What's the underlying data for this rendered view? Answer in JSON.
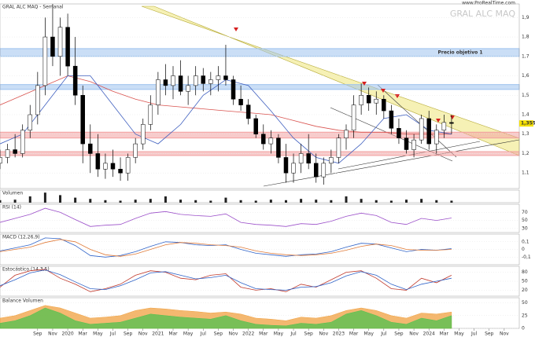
{
  "chart_data": [
    {
      "type": "candlestick",
      "title": "GRAL ALC MAQ - Semanal",
      "watermark": "GRAL ALC MAQ",
      "source": "www.ProRealTime.com",
      "x": [
        -9,
        -8,
        -7,
        -6,
        -5,
        -4,
        -3,
        -2,
        -1,
        0,
        1,
        2,
        3,
        4,
        5,
        6,
        7,
        8,
        9,
        10,
        11,
        12,
        13,
        14,
        15,
        16,
        17,
        18,
        19,
        20,
        21,
        22,
        23,
        24,
        25,
        26,
        27,
        28,
        29,
        30,
        31,
        32,
        33,
        34,
        35,
        36,
        37,
        38,
        39,
        40,
        41,
        42,
        43,
        44,
        45,
        46,
        47,
        48,
        49,
        50,
        51
      ],
      "open": [
        1.15,
        1.18,
        1.22,
        1.2,
        1.32,
        1.4,
        1.55,
        1.8,
        1.7,
        1.85,
        1.65,
        1.5,
        1.25,
        1.2,
        1.12,
        1.15,
        1.12,
        1.1,
        1.18,
        1.25,
        1.35,
        1.45,
        1.58,
        1.55,
        1.6,
        1.52,
        1.55,
        1.6,
        1.56,
        1.58,
        1.6,
        1.58,
        1.48,
        1.45,
        1.38,
        1.3,
        1.25,
        1.28,
        1.18,
        1.1,
        1.15,
        1.2,
        1.15,
        1.08,
        1.15,
        1.18,
        1.28,
        1.32,
        1.45,
        1.5,
        1.46,
        1.48,
        1.42,
        1.33,
        1.28,
        1.22,
        1.27,
        1.38,
        1.25,
        1.32,
        1.36
      ],
      "high": [
        1.22,
        1.25,
        1.3,
        1.35,
        1.45,
        1.62,
        1.9,
        1.97,
        1.9,
        1.92,
        1.8,
        1.55,
        1.35,
        1.3,
        1.2,
        1.22,
        1.18,
        1.2,
        1.28,
        1.38,
        1.5,
        1.62,
        1.66,
        1.65,
        1.68,
        1.6,
        1.65,
        1.64,
        1.62,
        1.65,
        1.76,
        1.6,
        1.55,
        1.48,
        1.4,
        1.35,
        1.32,
        1.3,
        1.25,
        1.2,
        1.25,
        1.3,
        1.2,
        1.18,
        1.22,
        1.3,
        1.35,
        1.5,
        1.56,
        1.54,
        1.52,
        1.5,
        1.45,
        1.38,
        1.32,
        1.3,
        1.4,
        1.42,
        1.35,
        1.4,
        1.4
      ],
      "low": [
        1.12,
        1.15,
        1.18,
        1.18,
        1.28,
        1.35,
        1.5,
        1.65,
        1.6,
        1.6,
        1.45,
        1.15,
        1.1,
        1.08,
        1.07,
        1.08,
        1.06,
        1.06,
        1.15,
        1.22,
        1.32,
        1.4,
        1.5,
        1.48,
        1.5,
        1.45,
        1.5,
        1.52,
        1.5,
        1.52,
        1.55,
        1.45,
        1.42,
        1.35,
        1.28,
        1.22,
        1.2,
        1.15,
        1.05,
        1.05,
        1.1,
        1.12,
        1.05,
        1.04,
        1.1,
        1.15,
        1.22,
        1.28,
        1.4,
        1.42,
        1.4,
        1.38,
        1.3,
        1.25,
        1.2,
        1.18,
        1.25,
        1.22,
        1.2,
        1.28,
        1.3
      ],
      "close": [
        1.18,
        1.22,
        1.2,
        1.32,
        1.4,
        1.55,
        1.8,
        1.7,
        1.85,
        1.65,
        1.5,
        1.25,
        1.2,
        1.12,
        1.15,
        1.12,
        1.1,
        1.18,
        1.25,
        1.35,
        1.45,
        1.58,
        1.55,
        1.6,
        1.52,
        1.55,
        1.6,
        1.56,
        1.58,
        1.6,
        1.58,
        1.48,
        1.45,
        1.38,
        1.3,
        1.25,
        1.28,
        1.18,
        1.1,
        1.15,
        1.2,
        1.15,
        1.08,
        1.15,
        1.18,
        1.28,
        1.32,
        1.45,
        1.5,
        1.46,
        1.48,
        1.42,
        1.33,
        1.28,
        1.22,
        1.27,
        1.38,
        1.25,
        1.32,
        1.36,
        1.355
      ],
      "overlays": [
        {
          "color": "#d9534f",
          "x": [
            -9,
            -6,
            -3,
            0,
            3,
            6,
            9,
            12,
            15,
            18,
            21,
            24,
            27,
            30,
            33,
            36,
            39,
            42,
            45,
            48,
            51
          ],
          "values": [
            1.45,
            1.5,
            1.55,
            1.6,
            1.57,
            1.52,
            1.48,
            1.45,
            1.44,
            1.43,
            1.42,
            1.41,
            1.4,
            1.37,
            1.34,
            1.32,
            1.31,
            1.31,
            1.3,
            1.3,
            1.3
          ]
        },
        {
          "color": "#3f5fbf",
          "x": [
            -9,
            -6,
            -3,
            0,
            3,
            6,
            9,
            12,
            15,
            18,
            21,
            24,
            27,
            30,
            33,
            36,
            39,
            42,
            45,
            48,
            51
          ],
          "values": [
            1.25,
            1.3,
            1.45,
            1.6,
            1.6,
            1.45,
            1.3,
            1.25,
            1.35,
            1.5,
            1.58,
            1.55,
            1.42,
            1.28,
            1.18,
            1.15,
            1.25,
            1.38,
            1.4,
            1.32,
            1.3
          ]
        }
      ],
      "zones": [
        {
          "label": "Precio objetivo 1",
          "low": 1.7,
          "high": 1.74,
          "color": "#9ec3ee"
        },
        {
          "low": 1.53,
          "high": 1.555,
          "color": "#9ec3ee"
        },
        {
          "low": 1.28,
          "high": 1.31,
          "color": "#f2a0a0"
        },
        {
          "low": 1.19,
          "high": 1.21,
          "color": "#f2a0a0"
        }
      ],
      "last_price": {
        "value": 1.355,
        "label": "1,355"
      },
      "ylim": [
        1.02,
        1.97
      ],
      "yticks": [
        {
          "value": 1.1,
          "label": "1,1"
        },
        {
          "value": 1.2,
          "label": "1,2"
        },
        {
          "value": 1.3,
          "label": "1,3"
        },
        {
          "value": 1.4,
          "label": "1,4"
        },
        {
          "value": 1.5,
          "label": "1,5"
        },
        {
          "value": 1.6,
          "label": "1,6"
        },
        {
          "value": 1.7,
          "label": "1,7"
        },
        {
          "value": 1.8,
          "label": "1,8"
        },
        {
          "value": 1.9,
          "label": "1,9"
        }
      ],
      "xlim": [
        -9,
        60
      ],
      "xticks": [
        {
          "value": -4,
          "label": "Sep"
        },
        {
          "value": -2,
          "label": "Nov"
        },
        {
          "value": 0,
          "label": "2020"
        },
        {
          "value": 2,
          "label": "Mar"
        },
        {
          "value": 4,
          "label": "May"
        },
        {
          "value": 6,
          "label": "Jul"
        },
        {
          "value": 8,
          "label": "Sep"
        },
        {
          "value": 10,
          "label": "Nov"
        },
        {
          "value": 12,
          "label": "2021"
        },
        {
          "value": 14,
          "label": "Mar"
        },
        {
          "value": 16,
          "label": "May"
        },
        {
          "value": 18,
          "label": "Jul"
        },
        {
          "value": 20,
          "label": "Sep"
        },
        {
          "value": 22,
          "label": "Nov"
        },
        {
          "value": 24,
          "label": "2022"
        },
        {
          "value": 26,
          "label": "Mar"
        },
        {
          "value": 28,
          "label": "May"
        },
        {
          "value": 30,
          "label": "Jul"
        },
        {
          "value": 32,
          "label": "Sep"
        },
        {
          "value": 34,
          "label": "Nov"
        },
        {
          "value": 36,
          "label": "2023"
        },
        {
          "value": 38,
          "label": "Mar"
        },
        {
          "value": 40,
          "label": "May"
        },
        {
          "value": 42,
          "label": "Jul"
        },
        {
          "value": 44,
          "label": "Sep"
        },
        {
          "value": 46,
          "label": "Nov"
        },
        {
          "value": 48,
          "label": "2024"
        },
        {
          "value": 50,
          "label": "Mar"
        },
        {
          "value": 52,
          "label": "May"
        },
        {
          "value": 54,
          "label": "Jul"
        },
        {
          "value": 56,
          "label": "Sep"
        },
        {
          "value": 58,
          "label": "Nov"
        }
      ]
    },
    {
      "type": "bar",
      "title": "Volumen",
      "color": "#222222",
      "x": [
        -9,
        -7,
        -5,
        -3,
        -1,
        1,
        3,
        5,
        7,
        9,
        11,
        13,
        15,
        17,
        19,
        21,
        23,
        25,
        27,
        29,
        31,
        33,
        35,
        37,
        39,
        41,
        43,
        45,
        47,
        49,
        51
      ],
      "values": [
        10,
        12,
        25,
        40,
        30,
        20,
        15,
        10,
        8,
        12,
        15,
        25,
        12,
        10,
        8,
        20,
        10,
        8,
        12,
        10,
        15,
        12,
        10,
        25,
        15,
        10,
        8,
        12,
        15,
        10,
        8
      ],
      "ylim": [
        0,
        50
      ]
    },
    {
      "type": "line",
      "title": "RSI (14)",
      "x": [
        -9,
        -7,
        -5,
        -3,
        -1,
        1,
        3,
        5,
        7,
        9,
        11,
        13,
        15,
        17,
        19,
        21,
        23,
        25,
        27,
        29,
        31,
        33,
        35,
        37,
        39,
        41,
        43,
        45,
        47,
        49,
        51
      ],
      "series": [
        {
          "color": "#9b4fc9",
          "values": [
            45,
            55,
            65,
            80,
            70,
            52,
            35,
            38,
            40,
            55,
            68,
            72,
            65,
            62,
            60,
            66,
            45,
            40,
            38,
            35,
            42,
            40,
            48,
            60,
            68,
            62,
            45,
            40,
            55,
            50,
            56
          ]
        }
      ],
      "ylim": [
        20,
        90
      ],
      "yticks": [
        30,
        50,
        70
      ]
    },
    {
      "type": "line",
      "title": "MACD (12,26,9)",
      "x": [
        -9,
        -7,
        -5,
        -3,
        -1,
        1,
        3,
        5,
        7,
        9,
        11,
        13,
        15,
        17,
        19,
        21,
        23,
        25,
        27,
        29,
        31,
        33,
        35,
        37,
        39,
        41,
        43,
        45,
        47,
        49,
        51
      ],
      "series": [
        {
          "color": "#2f63c8",
          "values": [
            -0.02,
            0.02,
            0.06,
            0.15,
            0.14,
            0.05,
            -0.08,
            -0.1,
            -0.08,
            -0.03,
            0.04,
            0.1,
            0.09,
            0.06,
            0.05,
            0.06,
            0.0,
            -0.05,
            -0.07,
            -0.09,
            -0.07,
            -0.06,
            -0.03,
            0.03,
            0.08,
            0.07,
            0.02,
            -0.03,
            0.0,
            -0.01,
            0.01
          ]
        },
        {
          "color": "#e07b39",
          "values": [
            -0.03,
            0.0,
            0.03,
            0.09,
            0.13,
            0.1,
            0.0,
            -0.07,
            -0.09,
            -0.06,
            0.0,
            0.06,
            0.09,
            0.08,
            0.06,
            0.05,
            0.03,
            -0.02,
            -0.05,
            -0.07,
            -0.08,
            -0.07,
            -0.05,
            -0.01,
            0.04,
            0.07,
            0.05,
            0.0,
            -0.01,
            -0.01,
            0.0
          ]
        }
      ],
      "ylim": [
        -0.2,
        0.2
      ],
      "yticks": [
        {
          "value": -0.1,
          "label": "-0,1"
        },
        0,
        {
          "value": 0.1,
          "label": "0,1"
        }
      ]
    },
    {
      "type": "line",
      "title": "Estocástico (14,3,5)",
      "x": [
        -9,
        -7,
        -5,
        -3,
        -1,
        1,
        3,
        5,
        7,
        9,
        11,
        13,
        15,
        17,
        19,
        21,
        23,
        25,
        27,
        29,
        31,
        33,
        35,
        37,
        39,
        41,
        43,
        45,
        47,
        49,
        51
      ],
      "series": [
        {
          "color": "#c0392b",
          "values": [
            30,
            70,
            85,
            90,
            60,
            40,
            15,
            25,
            40,
            70,
            85,
            80,
            60,
            55,
            70,
            75,
            30,
            20,
            25,
            15,
            40,
            30,
            55,
            80,
            85,
            60,
            25,
            20,
            60,
            45,
            70
          ]
        },
        {
          "color": "#2f63c8",
          "values": [
            35,
            55,
            78,
            88,
            72,
            48,
            25,
            22,
            35,
            55,
            78,
            82,
            70,
            58,
            62,
            70,
            45,
            25,
            22,
            20,
            30,
            32,
            45,
            68,
            82,
            70,
            40,
            22,
            40,
            50,
            60
          ]
        }
      ],
      "ylim": [
        0,
        100
      ],
      "yticks": [
        20,
        50,
        80
      ]
    },
    {
      "type": "area",
      "title": "Balance Volumen",
      "x": [
        -9,
        -7,
        -5,
        -3,
        -1,
        1,
        3,
        5,
        7,
        9,
        11,
        13,
        15,
        17,
        19,
        21,
        23,
        25,
        27,
        29,
        31,
        33,
        35,
        37,
        39,
        41,
        43,
        45,
        47,
        49,
        51
      ],
      "series": [
        {
          "color": "#f0a040",
          "values": [
            20,
            25,
            35,
            45,
            40,
            30,
            20,
            22,
            25,
            35,
            40,
            38,
            35,
            33,
            30,
            32,
            28,
            20,
            18,
            15,
            22,
            20,
            25,
            35,
            40,
            35,
            25,
            20,
            30,
            28,
            32
          ]
        },
        {
          "color": "#4fc24f",
          "values": [
            10,
            15,
            25,
            40,
            30,
            15,
            8,
            10,
            12,
            20,
            28,
            25,
            22,
            20,
            18,
            25,
            15,
            8,
            6,
            5,
            10,
            8,
            12,
            28,
            35,
            25,
            12,
            8,
            20,
            15,
            25
          ]
        }
      ],
      "ylim": [
        0,
        60
      ],
      "yticks": [
        0,
        25,
        50
      ]
    }
  ]
}
